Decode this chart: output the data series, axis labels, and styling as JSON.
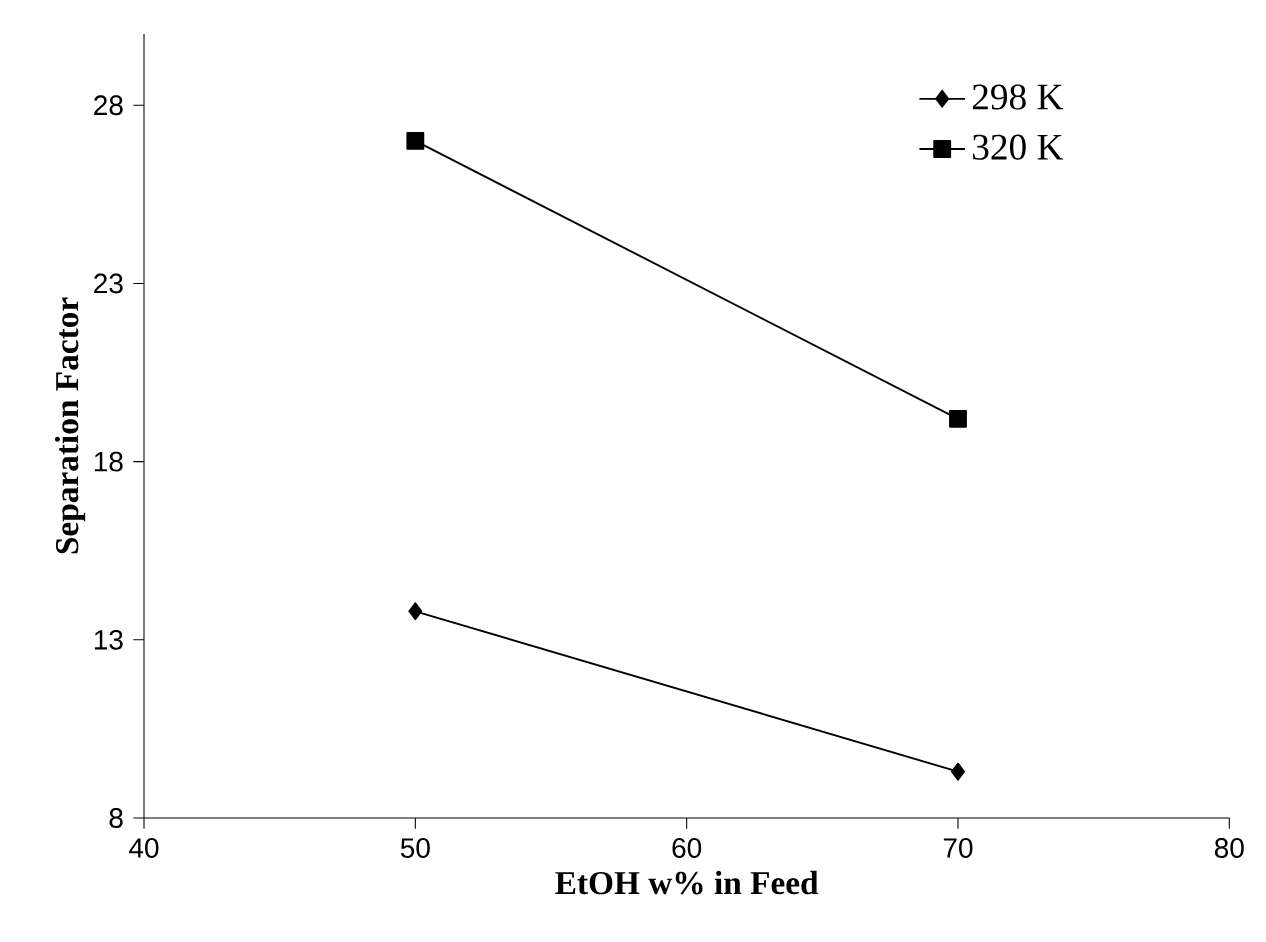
{
  "chart_data": {
    "type": "line",
    "xlabel": "EtOH w% in Feed",
    "ylabel": "Separation Factor",
    "x": [
      50,
      70
    ],
    "series": [
      {
        "name": "298 K",
        "color": "#000000",
        "values": [
          13.8,
          9.3
        ],
        "marker": "diamond"
      },
      {
        "name": "320 K",
        "color": "#000000",
        "values": [
          27.0,
          19.2
        ],
        "marker": "square"
      }
    ],
    "xlim": [
      40,
      80
    ],
    "xticks": [
      40,
      50,
      60,
      70,
      80
    ],
    "ylim": [
      8,
      30
    ],
    "yticks": [
      8,
      13,
      18,
      23,
      28
    ],
    "grid": false,
    "legend": "top right",
    "line_style": "solid"
  }
}
